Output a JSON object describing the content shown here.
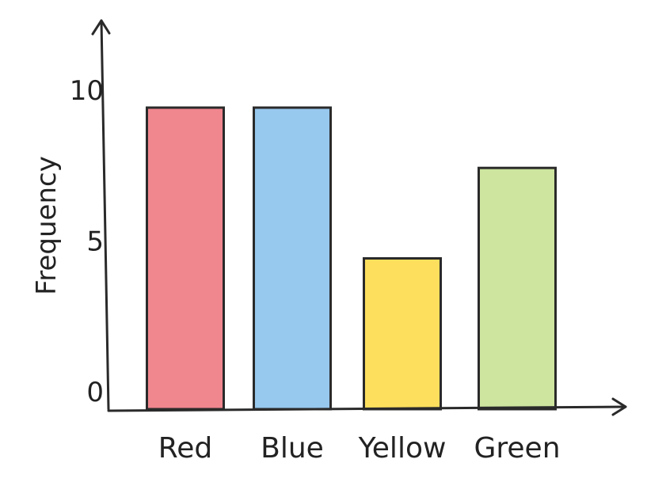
{
  "chart_data": {
    "type": "bar",
    "title": "",
    "xlabel": "",
    "ylabel": "Frequency",
    "categories": [
      "Red",
      "Blue",
      "Yellow",
      "Green"
    ],
    "values": [
      10,
      10,
      5,
      8
    ],
    "colors": [
      "#f0868e",
      "#97c8ee",
      "#fddf5d",
      "#cde59f"
    ],
    "yticks": [
      0,
      5,
      10
    ],
    "ylim": [
      0,
      12.3
    ],
    "grid": false,
    "legend": "none"
  }
}
